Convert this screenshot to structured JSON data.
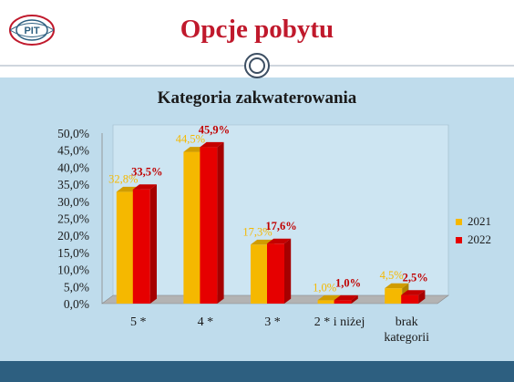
{
  "header": {
    "title": "Opcje pobytu",
    "logo_text": "PIT"
  },
  "colors": {
    "title": "#c0192c",
    "background_panel": "#bfdcec",
    "footer_bar": "#2d5f80",
    "series_2021": "#f5b800",
    "series_2022": "#e60000",
    "label_2021": "#f5b800",
    "label_2022": "#c00000"
  },
  "chart_data": {
    "type": "bar",
    "title": "Kategoria zakwaterowania",
    "categories": [
      "5 *",
      "4 *",
      "3 *",
      "2 * i niżej",
      "brak kategorii"
    ],
    "category_lines": [
      [
        "5 *"
      ],
      [
        "4 *"
      ],
      [
        "3 *"
      ],
      [
        "2 * i niżej"
      ],
      [
        "brak",
        "kategorii"
      ]
    ],
    "series": [
      {
        "name": "2021",
        "values": [
          32.8,
          44.5,
          17.3,
          1.0,
          4.5
        ],
        "labels": [
          "32,8%",
          "44,5%",
          "17,3%",
          "1,0%",
          "4,5%"
        ]
      },
      {
        "name": "2022",
        "values": [
          33.5,
          45.9,
          17.6,
          1.0,
          2.5
        ],
        "labels": [
          "33,5%",
          "45,9%",
          "17,6%",
          "1,0%",
          "2,5%"
        ]
      }
    ],
    "ylim": [
      0,
      50
    ],
    "y_ticks": [
      "0,0%",
      "5,0%",
      "10,0%",
      "15,0%",
      "20,0%",
      "25,0%",
      "30,0%",
      "35,0%",
      "40,0%",
      "45,0%",
      "50,0%"
    ],
    "style": "3d-clustered",
    "grid": false,
    "legend_position": "right"
  }
}
